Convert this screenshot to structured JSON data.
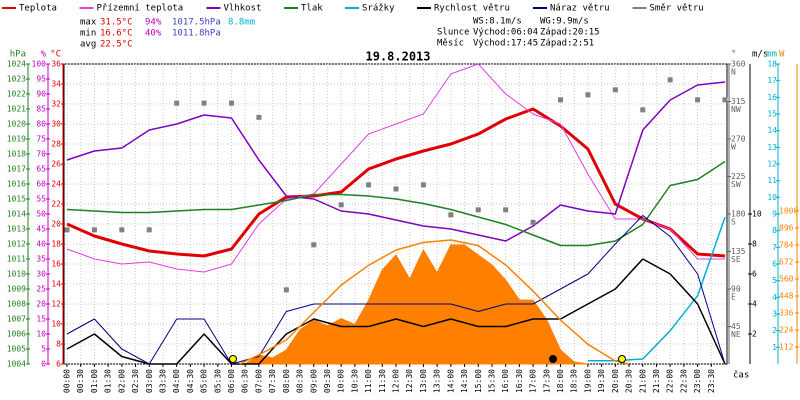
{
  "chart_data": {
    "type": "weather",
    "title": "19.8.2013",
    "x_axis_label": "čas",
    "xlim": [
      0,
      24
    ],
    "xticks": [
      {
        "value": 0,
        "label": "00:00"
      },
      {
        "value": 0.5,
        "label": "00:30"
      },
      {
        "value": 1,
        "label": "01:00"
      },
      {
        "value": 1.5,
        "label": "01:30"
      },
      {
        "value": 2,
        "label": "02:00"
      },
      {
        "value": 2.5,
        "label": "02:30"
      },
      {
        "value": 3,
        "label": "03:00"
      },
      {
        "value": 3.5,
        "label": "03:30"
      },
      {
        "value": 4,
        "label": "04:00"
      },
      {
        "value": 4.5,
        "label": "04:30"
      },
      {
        "value": 5,
        "label": "05:00"
      },
      {
        "value": 5.5,
        "label": "05:30"
      },
      {
        "value": 6,
        "label": "06:00"
      },
      {
        "value": 6.5,
        "label": "06:30"
      },
      {
        "value": 7,
        "label": "07:00"
      },
      {
        "value": 7.5,
        "label": "07:30"
      },
      {
        "value": 8,
        "label": "08:00"
      },
      {
        "value": 8.5,
        "label": "08:30"
      },
      {
        "value": 9,
        "label": "09:00"
      },
      {
        "value": 9.5,
        "label": "09:30"
      },
      {
        "value": 10,
        "label": "10:00"
      },
      {
        "value": 10.5,
        "label": "10:30"
      },
      {
        "value": 11,
        "label": "11:00"
      },
      {
        "value": 11.5,
        "label": "11:30"
      },
      {
        "value": 12,
        "label": "12:00"
      },
      {
        "value": 12.5,
        "label": "12:30"
      },
      {
        "value": 13,
        "label": "13:00"
      },
      {
        "value": 13.5,
        "label": "13:30"
      },
      {
        "value": 14,
        "label": "14:00"
      },
      {
        "value": 14.5,
        "label": "14:30"
      },
      {
        "value": 15,
        "label": "15:00"
      },
      {
        "value": 15.5,
        "label": "15:30"
      },
      {
        "value": 16,
        "label": "16:00"
      },
      {
        "value": 16.5,
        "label": "16:30"
      },
      {
        "value": 17,
        "label": "17:00"
      },
      {
        "value": 17.5,
        "label": "17:30"
      },
      {
        "value": 18,
        "label": "18:00"
      },
      {
        "value": 18.5,
        "label": "18:30"
      },
      {
        "value": 19,
        "label": "19:00"
      },
      {
        "value": 19.5,
        "label": "19:30"
      },
      {
        "value": 20,
        "label": "20:00"
      },
      {
        "value": 20.5,
        "label": "20:30"
      },
      {
        "value": 21,
        "label": "21:00"
      },
      {
        "value": 21.5,
        "label": "21:30"
      },
      {
        "value": 22,
        "label": "22:00"
      },
      {
        "value": 22.5,
        "label": "22:30"
      },
      {
        "value": 23,
        "label": "23:00"
      },
      {
        "value": 23.5,
        "label": "23:30"
      }
    ],
    "grid": true,
    "axes": {
      "pres": {
        "label": "hPa",
        "color": "#208020",
        "side": "left",
        "ylim": [
          1004,
          1024
        ],
        "yticks": [
          1004,
          1005,
          1006,
          1007,
          1008,
          1009,
          1010,
          1011,
          1012,
          1013,
          1014,
          1015,
          1016,
          1017,
          1018,
          1019,
          1020,
          1021,
          1022,
          1023,
          1024
        ]
      },
      "hum": {
        "label": "%",
        "color": "#c000c0",
        "side": "left",
        "ylim": [
          0,
          100
        ],
        "yticks": [
          0,
          5,
          10,
          15,
          20,
          25,
          30,
          35,
          40,
          45,
          50,
          55,
          60,
          65,
          70,
          75,
          80,
          85,
          90,
          95,
          100
        ]
      },
      "temp": {
        "label": "°C",
        "color": "#e00000",
        "side": "left",
        "ylim": [
          6,
          36
        ],
        "yticks": [
          6,
          8,
          10,
          12,
          14,
          16,
          18,
          20,
          22,
          24,
          26,
          28,
          30,
          32,
          34,
          36
        ]
      },
      "dir": {
        "label": "°",
        "color": "#606060",
        "side": "right",
        "ylim": [
          0,
          360
        ],
        "yticks": [
          45,
          90,
          135,
          180,
          225,
          270,
          315,
          360
        ],
        "compass": [
          "NE",
          "E",
          "SE",
          "S",
          "SW",
          "W",
          "NW",
          "N"
        ]
      },
      "wind": {
        "label": "m/s",
        "color": "#000000",
        "side": "right",
        "ylim": [
          0,
          20
        ],
        "yticks": [
          2,
          4,
          6,
          8,
          10
        ]
      },
      "rain": {
        "label": "mm",
        "color": "#00b0d0",
        "side": "right",
        "ylim": [
          0,
          18
        ],
        "yticks": [
          1,
          2,
          3,
          4,
          5,
          6,
          7,
          8,
          9,
          10,
          11,
          12,
          13,
          14,
          15,
          16,
          17,
          18
        ]
      },
      "solar": {
        "label": "W",
        "color": "#ff8000",
        "side": "right",
        "ylim": [
          0,
          1976
        ],
        "yticks": [
          112,
          224,
          336,
          448,
          560,
          672,
          784,
          896,
          1008
        ]
      }
    },
    "x": [
      0,
      1,
      2,
      3,
      4,
      5,
      6,
      7,
      8,
      9,
      10,
      11,
      12,
      13,
      14,
      15,
      16,
      17,
      18,
      19,
      20,
      21,
      22,
      23,
      24
    ],
    "series": [
      {
        "name": "Teplota",
        "color": "#e00000",
        "axis": "temp",
        "style": "line",
        "width": 3,
        "values": [
          20.0,
          18.8,
          18.0,
          17.3,
          17.0,
          16.8,
          17.5,
          21.0,
          22.7,
          22.8,
          23.2,
          25.5,
          26.5,
          27.3,
          28.0,
          29.0,
          30.5,
          31.5,
          29.8,
          27.5,
          22.0,
          20.5,
          19.5,
          17.0,
          16.8
        ]
      },
      {
        "name": "Přízemní teplota",
        "color": "#e040e0",
        "axis": "temp",
        "style": "line",
        "width": 1,
        "values": [
          17.5,
          16.5,
          16.0,
          16.2,
          15.5,
          15.2,
          16.0,
          20.0,
          22.5,
          23.0,
          26.0,
          29.0,
          30.0,
          31.0,
          35.0,
          36.0,
          33.0,
          31.0,
          30.0,
          25.0,
          20.5,
          20.5,
          19.5,
          16.5,
          16.5
        ]
      },
      {
        "name": "Vlhkost",
        "color": "#8000c0",
        "axis": "hum",
        "style": "line",
        "width": 1.5,
        "values": [
          68,
          71,
          72,
          78,
          80,
          83,
          82,
          68,
          56,
          55,
          51,
          50,
          48,
          46,
          45,
          43,
          41,
          46,
          53,
          51,
          50,
          78,
          88,
          93,
          94
        ]
      },
      {
        "name": "Tlak",
        "color": "#208020",
        "axis": "pres",
        "style": "line",
        "width": 1.5,
        "values": [
          1014.3,
          1014.2,
          1014.1,
          1014.1,
          1014.2,
          1014.3,
          1014.3,
          1014.6,
          1014.9,
          1015.3,
          1015.3,
          1015.2,
          1015.0,
          1014.7,
          1014.3,
          1013.8,
          1013.3,
          1012.6,
          1011.9,
          1011.9,
          1012.2,
          1013.3,
          1015.9,
          1016.3,
          1017.5
        ]
      },
      {
        "name": "Srážky",
        "color": "#00b0d0",
        "axis": "rain",
        "style": "line",
        "width": 1.5,
        "values": [
          null,
          null,
          null,
          null,
          null,
          null,
          null,
          null,
          null,
          null,
          null,
          null,
          null,
          null,
          null,
          null,
          null,
          null,
          null,
          0.2,
          0.2,
          0.3,
          2.0,
          4.1,
          8.8
        ]
      },
      {
        "name": "Rychlost větru",
        "color": "#000000",
        "axis": "wind",
        "style": "line",
        "width": 1.5,
        "values": [
          1,
          2,
          0.5,
          0,
          0,
          2,
          0,
          0,
          2,
          3,
          2.5,
          2.5,
          3,
          2.5,
          3,
          2.5,
          2.5,
          3,
          3,
          4,
          5,
          7,
          6,
          4,
          0
        ]
      },
      {
        "name": "Náraz větru",
        "color": "#000080",
        "axis": "wind",
        "style": "line",
        "width": 1,
        "values": [
          2,
          3,
          1,
          0,
          3,
          3,
          0,
          0.5,
          3.5,
          4,
          4,
          4,
          4,
          4,
          4,
          3.5,
          4,
          4,
          5,
          6,
          8,
          9.9,
          8.5,
          6,
          0
        ]
      },
      {
        "name": "Směr větru",
        "color": "#808080",
        "axis": "dir",
        "style": "points",
        "values": [
          161,
          161,
          161,
          161,
          313,
          313,
          313,
          296,
          89,
          143,
          191,
          215,
          210,
          215,
          179,
          185,
          185,
          170,
          317,
          323,
          329,
          305,
          341,
          317,
          317
        ]
      },
      {
        "color": "#ff8000",
        "axis": "solar",
        "style": "area",
        "x": [
          6,
          6.5,
          7,
          7.5,
          8,
          8.5,
          9,
          9.5,
          10,
          10.5,
          11,
          11.5,
          12,
          12.5,
          13,
          13.5,
          14,
          14.5,
          15,
          15.5,
          16,
          16.5,
          17,
          17.5,
          18,
          18.5,
          19
        ],
        "values": [
          0,
          0,
          59,
          40,
          92,
          224,
          290,
          250,
          300,
          260,
          420,
          620,
          718,
          560,
          751,
          600,
          784,
          784,
          718,
          652,
          553,
          422,
          420,
          290,
          92,
          13,
          0
        ]
      },
      {
        "color": "#ff8000",
        "axis": "solar",
        "style": "line",
        "width": 1.5,
        "x": [
          6.3,
          7,
          8,
          9,
          10,
          11,
          12,
          13,
          14,
          15,
          16,
          17,
          18,
          19,
          20,
          20.5
        ],
        "values": [
          0,
          60,
          158,
          340,
          520,
          650,
          751,
          800,
          817,
          780,
          652,
          480,
          290,
          130,
          20,
          0
        ]
      }
    ],
    "info": {
      "max": {
        "label": "max",
        "temp": "31.5°C",
        "hum": "94%",
        "pres": "1017.5hPa",
        "rain": "8.8mm"
      },
      "min": {
        "label": "min",
        "temp": "16.6°C",
        "hum": "40%",
        "pres": "1011.8hPa"
      },
      "avg": {
        "label": "avg",
        "temp": "22.5°C"
      },
      "ws": "WS:8.1m/s",
      "wg": "WG:9.9m/s",
      "sun": {
        "label": "Slunce",
        "rise": "Východ:06:04",
        "set": "Západ:20:15"
      },
      "moon": {
        "label": "Měsíc",
        "rise": "Východ:17:45",
        "set": "Západ:2:51"
      }
    }
  }
}
